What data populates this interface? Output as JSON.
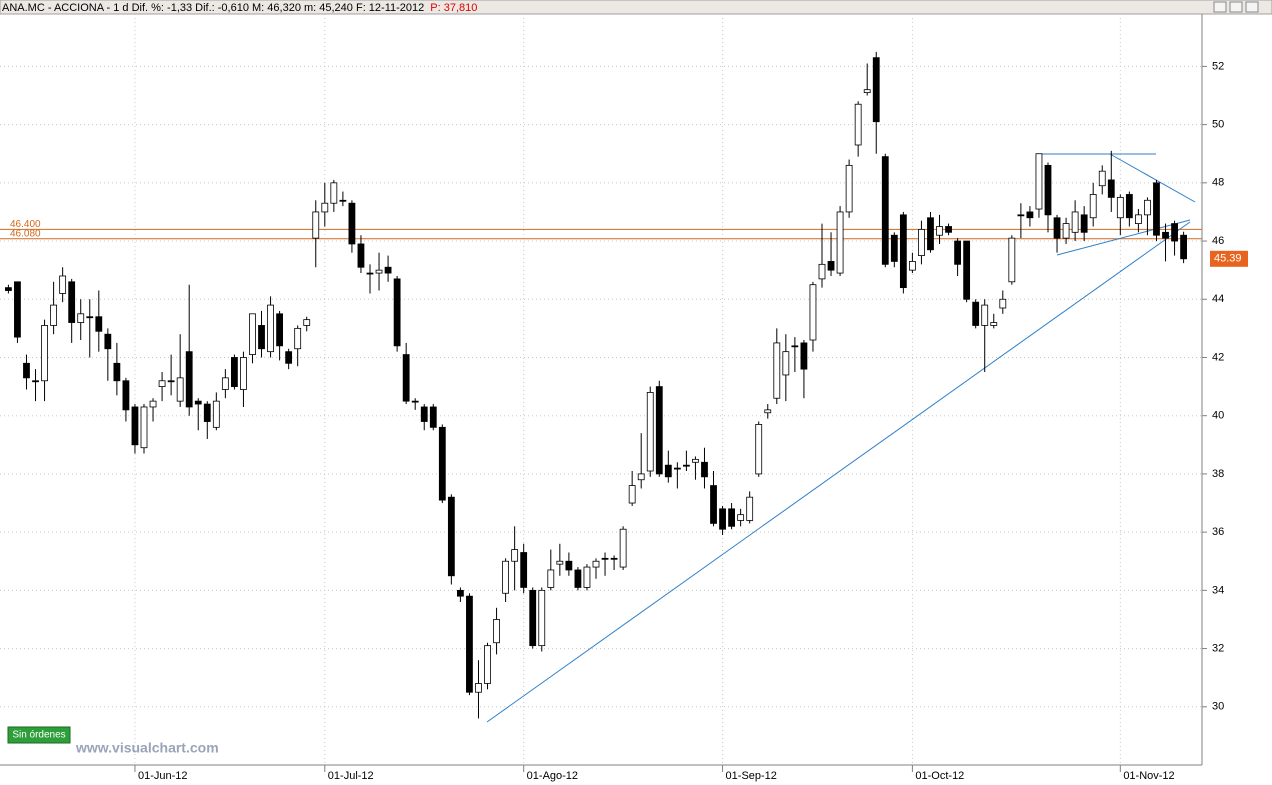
{
  "chart_data": {
    "type": "candlestick",
    "title": "ANA.MC - ACCIONA - 1 d  Dif. %: -1,33  Dif.: -0,610  M: 46,320  m: 45,240  F: 12-11-2012",
    "price_note": "P: 37,810",
    "categories": [
      null,
      null,
      null,
      null,
      null,
      null,
      null,
      null,
      null,
      null,
      null,
      null,
      null,
      null,
      "01-Jun-12",
      null,
      null,
      null,
      null,
      null,
      null,
      null,
      null,
      null,
      null,
      null,
      null,
      null,
      null,
      null,
      null,
      null,
      null,
      null,
      null,
      "01-Jul-12",
      null,
      null,
      null,
      null,
      null,
      null,
      null,
      null,
      null,
      null,
      null,
      null,
      null,
      null,
      null,
      null,
      null,
      null,
      null,
      null,
      null,
      "01-Ago-12",
      null,
      null,
      null,
      null,
      null,
      null,
      null,
      null,
      null,
      null,
      null,
      null,
      null,
      null,
      null,
      null,
      null,
      null,
      null,
      null,
      null,
      "01-Sep-12",
      null,
      null,
      null,
      null,
      null,
      null,
      null,
      null,
      null,
      null,
      null,
      null,
      null,
      null,
      null,
      null,
      null,
      null,
      null,
      null,
      "01-Oct-12",
      null,
      null,
      null,
      null,
      null,
      null,
      null,
      null,
      null,
      null,
      null,
      null,
      null,
      null,
      null,
      null,
      null,
      null,
      null,
      null,
      null,
      null,
      "01-Nov-12",
      null,
      null,
      null,
      null,
      null,
      null,
      null
    ],
    "open": [
      44.4,
      44.6,
      41.8,
      41.2,
      41.2,
      43.1,
      44.2,
      44.6,
      43.2,
      43.4,
      43.4,
      42.8,
      41.8,
      41.2,
      40.3,
      38.9,
      40.3,
      41.0,
      41.2,
      40.5,
      42.2,
      40.5,
      40.4,
      39.6,
      40.9,
      42.0,
      40.9,
      42.1,
      43.1,
      42.2,
      43.5,
      42.2,
      42.3,
      43.1,
      46.1,
      47.0,
      47.3,
      47.4,
      47.3,
      45.9,
      44.9,
      44.9,
      45.1,
      44.7,
      42.1,
      40.5,
      40.3,
      40.3,
      39.6,
      37.2,
      34.0,
      33.8,
      30.5,
      30.8,
      32.2,
      33.9,
      35.0,
      35.3,
      34.0,
      32.1,
      34.1,
      34.9,
      35.0,
      34.7,
      34.1,
      34.8,
      35.1,
      35.1,
      34.8,
      37.0,
      37.8,
      38.1,
      41.0,
      38.3,
      38.2,
      38.3,
      38.4,
      38.4,
      37.6,
      36.8,
      36.8,
      36.4,
      36.4,
      38.0,
      40.1,
      40.6,
      41.4,
      42.4,
      42.5,
      42.6,
      44.7,
      45.3,
      44.9,
      47.0,
      49.3,
      51.1,
      52.3,
      48.9,
      46.2,
      46.9,
      45.0,
      45.5,
      46.8,
      46.2,
      46.5,
      46.0,
      46.0,
      43.9,
      43.1,
      43.1,
      43.7,
      44.6,
      46.9,
      47.0,
      47.1,
      48.6,
      46.8,
      46.1,
      46.3,
      46.9,
      46.8,
      47.9,
      48.1,
      46.8,
      47.6,
      46.6,
      46.9,
      48.0,
      46.3,
      46.6,
      46.2
    ],
    "high": [
      44.5,
      44.6,
      42.1,
      41.6,
      43.3,
      44.6,
      45.1,
      44.7,
      44.0,
      44.0,
      44.3,
      43.0,
      42.5,
      41.3,
      40.4,
      40.4,
      40.6,
      41.5,
      42.1,
      42.8,
      44.5,
      40.6,
      40.5,
      40.8,
      41.6,
      42.1,
      42.2,
      43.5,
      43.6,
      44.1,
      43.6,
      42.3,
      43.1,
      43.4,
      47.4,
      48.0,
      48.1,
      47.7,
      47.4,
      46.2,
      45.2,
      45.6,
      45.5,
      44.8,
      42.5,
      40.6,
      40.4,
      40.4,
      39.7,
      37.3,
      34.1,
      33.9,
      31.6,
      32.2,
      33.4,
      35.1,
      36.2,
      35.6,
      34.1,
      34.1,
      35.4,
      35.6,
      35.3,
      34.8,
      34.9,
      35.1,
      35.3,
      35.2,
      36.2,
      38.1,
      39.4,
      41.0,
      41.2,
      38.8,
      38.4,
      38.8,
      38.6,
      38.9,
      38.1,
      36.9,
      37.0,
      36.8,
      37.4,
      39.8,
      40.4,
      43.0,
      42.8,
      42.7,
      42.6,
      44.6,
      46.6,
      46.3,
      47.2,
      48.8,
      50.8,
      52.1,
      52.5,
      49.0,
      46.3,
      47.0,
      45.6,
      46.7,
      47.0,
      46.9,
      46.6,
      46.1,
      46.0,
      44.0,
      44.0,
      43.5,
      44.3,
      46.2,
      47.3,
      47.2,
      49.0,
      48.7,
      46.9,
      46.8,
      47.4,
      47.2,
      48.0,
      48.6,
      49.1,
      47.6,
      47.7,
      47.1,
      47.5,
      48.1,
      46.6,
      46.7,
      46.32
    ],
    "low": [
      44.2,
      42.5,
      40.9,
      40.5,
      40.5,
      42.8,
      43.9,
      42.5,
      42.6,
      42.0,
      42.2,
      41.2,
      40.7,
      39.8,
      38.7,
      38.7,
      39.8,
      40.5,
      40.7,
      40.3,
      40.0,
      39.5,
      39.2,
      39.5,
      40.6,
      40.9,
      40.3,
      41.8,
      42.0,
      42.0,
      41.9,
      41.6,
      41.7,
      42.9,
      45.1,
      46.5,
      47.0,
      47.2,
      45.6,
      44.9,
      44.2,
      44.3,
      44.6,
      42.2,
      40.4,
      40.2,
      39.5,
      39.5,
      37.0,
      34.2,
      33.6,
      30.4,
      29.6,
      30.6,
      31.8,
      33.6,
      34.0,
      33.9,
      32.0,
      31.9,
      34.0,
      34.5,
      34.5,
      34.0,
      34.0,
      34.4,
      34.5,
      34.7,
      34.7,
      36.9,
      37.5,
      37.9,
      37.9,
      37.7,
      37.5,
      38.1,
      37.8,
      37.5,
      36.2,
      35.9,
      36.1,
      36.2,
      36.3,
      37.9,
      39.9,
      40.4,
      40.5,
      41.5,
      40.6,
      42.2,
      44.4,
      44.8,
      44.8,
      46.8,
      48.9,
      51.0,
      49.0,
      45.1,
      45.1,
      44.2,
      44.9,
      45.2,
      45.6,
      45.9,
      46.2,
      44.8,
      43.9,
      43.0,
      41.5,
      43.0,
      43.5,
      44.5,
      46.1,
      46.5,
      46.8,
      46.3,
      45.6,
      45.9,
      46.0,
      46.0,
      46.5,
      47.6,
      47.0,
      46.2,
      46.5,
      46.3,
      46.2,
      46.0,
      45.3,
      45.5,
      45.24
    ],
    "close": [
      44.3,
      42.7,
      41.3,
      41.2,
      43.1,
      43.8,
      44.8,
      43.2,
      43.5,
      43.4,
      42.9,
      42.3,
      41.2,
      40.2,
      39.0,
      40.3,
      40.5,
      41.2,
      41.2,
      41.3,
      40.3,
      40.4,
      39.8,
      40.5,
      41.3,
      41.0,
      42.0,
      43.5,
      42.3,
      43.8,
      42.4,
      41.8,
      43.0,
      43.3,
      47.0,
      47.3,
      48.0,
      47.4,
      45.9,
      45.1,
      44.9,
      45.0,
      44.9,
      42.4,
      40.5,
      40.5,
      39.8,
      39.6,
      37.1,
      34.5,
      33.8,
      30.5,
      30.8,
      32.1,
      33.0,
      35.0,
      35.4,
      34.1,
      32.1,
      34.0,
      34.7,
      35.0,
      34.7,
      34.1,
      34.8,
      35.0,
      35.1,
      35.1,
      36.1,
      37.6,
      38.0,
      40.8,
      38.0,
      37.9,
      38.2,
      38.3,
      38.5,
      37.9,
      36.3,
      36.1,
      36.2,
      36.6,
      37.2,
      39.7,
      40.2,
      42.5,
      42.2,
      42.4,
      41.6,
      44.5,
      45.2,
      45.0,
      47.0,
      48.6,
      50.7,
      51.2,
      50.1,
      45.2,
      45.3,
      44.4,
      45.3,
      46.4,
      45.7,
      46.5,
      46.3,
      45.2,
      44.0,
      43.1,
      43.8,
      43.2,
      44.0,
      46.1,
      46.9,
      46.8,
      49.0,
      46.9,
      46.1,
      46.6,
      47.0,
      46.3,
      47.6,
      48.4,
      47.5,
      47.5,
      46.8,
      46.9,
      47.4,
      46.2,
      46.1,
      46.0,
      45.39
    ],
    "last_price": 45.39,
    "hlines": [
      {
        "value": 46.4,
        "label": "46.400",
        "color": "#d2691e"
      },
      {
        "value": 46.08,
        "label": "46.080",
        "color": "#d2691e"
      }
    ],
    "ylim": [
      28,
      53.8
    ],
    "yticks": [
      30,
      32,
      34,
      36,
      38,
      40,
      42,
      44,
      46,
      48,
      50,
      52
    ],
    "grid": true
  },
  "ui": {
    "orders_button": "Sin órdenes",
    "watermark": "www.visualchart.com"
  }
}
